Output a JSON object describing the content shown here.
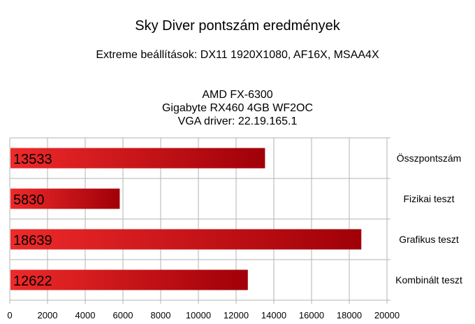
{
  "chart_data": {
    "type": "bar",
    "orientation": "horizontal",
    "title": "Sky Diver pontszám eredmények",
    "subtitle": "Extreme beállítások: DX11 1920X1080, AF16X, MSAA4X",
    "info_lines": [
      "AMD FX-6300",
      "Gigabyte RX460 4GB WF2OC",
      "VGA driver: 22.19.165.1"
    ],
    "categories": [
      "Összpontszám",
      "Fizikai teszt",
      "Grafikus teszt",
      "Kombinált teszt"
    ],
    "values": [
      13533,
      5830,
      18639,
      12622
    ],
    "value_labels": [
      "13533",
      "5830",
      "18639",
      "12622"
    ],
    "xlim": [
      0,
      20000
    ],
    "xticks": [
      0,
      2000,
      4000,
      6000,
      8000,
      10000,
      12000,
      14000,
      16000,
      18000,
      20000
    ],
    "xtick_labels": [
      "0",
      "2000",
      "4000",
      "6000",
      "8000",
      "10000",
      "12000",
      "14000",
      "16000",
      "18000",
      "20000"
    ],
    "grid": true,
    "category_label_position": "right",
    "colors": {
      "bar_light": "#ee2a2a",
      "bar_dark": "#a00008",
      "grid": "#b3b3b3"
    }
  }
}
